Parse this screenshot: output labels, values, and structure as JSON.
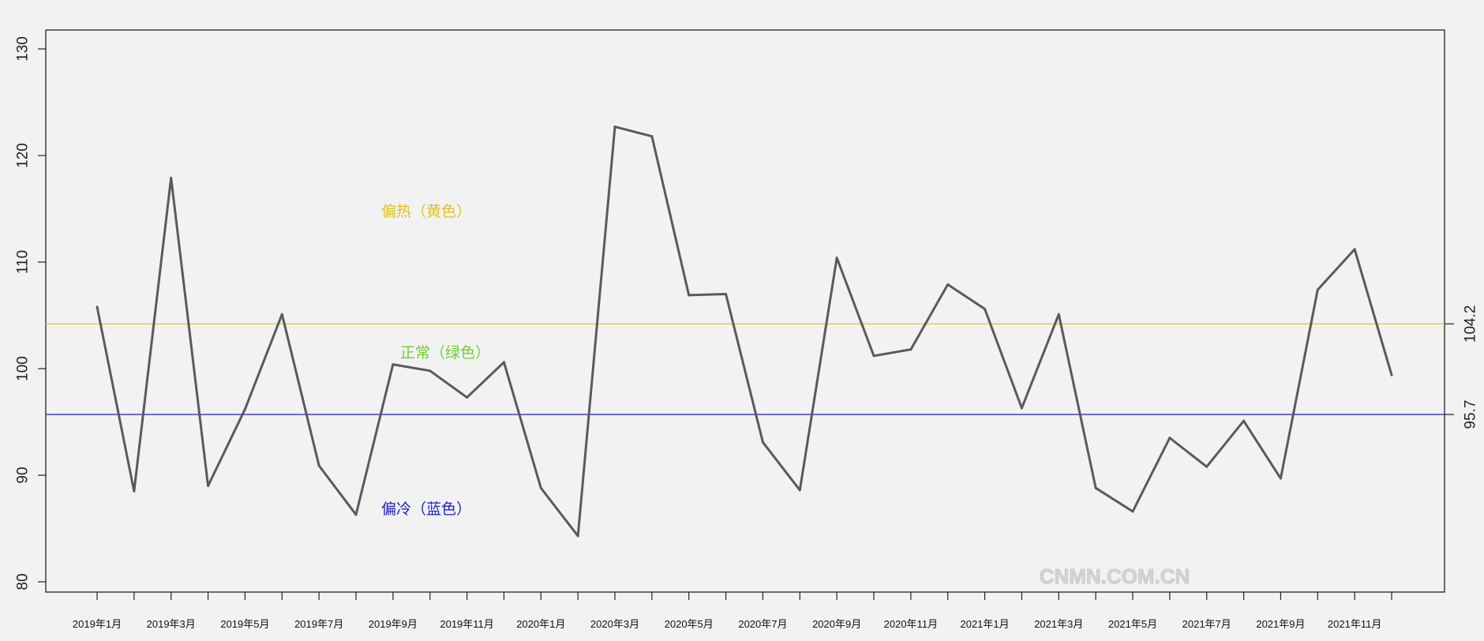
{
  "chart_data": {
    "type": "line",
    "title": "",
    "xlabel": "",
    "ylabel": "",
    "ylim": [
      80,
      130
    ],
    "yticks": [
      80,
      90,
      100,
      110,
      120,
      130
    ],
    "grid": false,
    "x": [
      "2019年1月",
      "2019年2月",
      "2019年3月",
      "2019年4月",
      "2019年5月",
      "2019年6月",
      "2019年7月",
      "2019年8月",
      "2019年9月",
      "2019年10月",
      "2019年11月",
      "2019年12月",
      "2020年1月",
      "2020年2月",
      "2020年3月",
      "2020年4月",
      "2020年5月",
      "2020年6月",
      "2020年7月",
      "2020年8月",
      "2020年9月",
      "2020年10月",
      "2020年11月",
      "2020年12月",
      "2021年1月",
      "2021年2月",
      "2021年3月",
      "2021年4月",
      "2021年5月",
      "2021年6月",
      "2021年7月",
      "2021年8月",
      "2021年9月",
      "2021年10月",
      "2021年11月",
      "2021年12月"
    ],
    "xtick_labels": [
      "2019年1月",
      "2019年3月",
      "2019年5月",
      "2019年7月",
      "2019年9月",
      "2019年11月",
      "2020年1月",
      "2020年3月",
      "2020年5月",
      "2020年7月",
      "2020年9月",
      "2020年11月",
      "2021年1月",
      "2021年3月",
      "2021年5月",
      "2021年7月",
      "2021年9月",
      "2021年11月"
    ],
    "values": [
      105.8,
      88.5,
      117.9,
      89.0,
      96.2,
      105.1,
      90.9,
      86.3,
      100.4,
      99.8,
      97.3,
      100.6,
      88.8,
      84.3,
      122.7,
      121.8,
      106.9,
      107.0,
      93.1,
      88.6,
      110.4,
      101.2,
      101.8,
      107.9,
      105.6,
      96.3,
      105.1,
      88.8,
      86.6,
      93.5,
      90.8,
      95.1,
      89.7,
      107.4,
      111.2,
      99.4
    ],
    "line_color": "#5a5a5a",
    "reference_lines": [
      {
        "value": 104.2,
        "label": "104.2",
        "color": "#e8c840"
      },
      {
        "value": 95.7,
        "label": "95.7",
        "color": "#3030c0"
      }
    ],
    "annotations": [
      {
        "text": "偏热（黄色）",
        "color": "#e0c020"
      },
      {
        "text": "正常（绿色）",
        "color": "#70d030"
      },
      {
        "text": "偏冷（蓝色）",
        "color": "#2020c8"
      }
    ],
    "watermark": "CNMN.COM.CN"
  }
}
